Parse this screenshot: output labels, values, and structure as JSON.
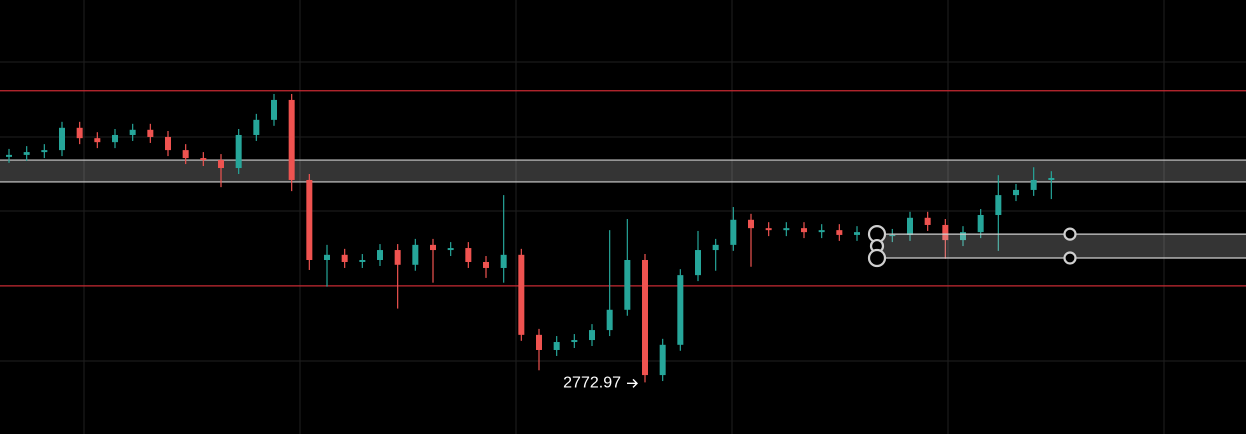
{
  "chart_data": {
    "type": "candlestick",
    "up_color": "#26a69a",
    "down_color": "#ef5350",
    "level_color": "#c62a32",
    "zone_color": "#cfcfcf",
    "ylim": [
      2760,
      2869
    ],
    "levels": [
      2846.2,
      2797.2
    ],
    "zone_full": [
      2823.3,
      2828.8
    ],
    "zone_right": [
      2804.2,
      2810.2
    ],
    "open": [
      2829.6,
      2830.1,
      2830.8,
      2831.3,
      2836.9,
      2834.3,
      2833.3,
      2835.1,
      2836.4,
      2834.6,
      2831.3,
      2829.3,
      2828.8,
      2826.8,
      2835.1,
      2838.9,
      2843.9,
      2823.8,
      2803.7,
      2805.0,
      2803.2,
      2803.7,
      2806.2,
      2802.5,
      2807.5,
      2806.2,
      2806.7,
      2803.2,
      2801.7,
      2805.0,
      2784.9,
      2781.1,
      2783.1,
      2783.6,
      2786.1,
      2791.2,
      2803.7,
      2774.8,
      2782.4,
      2799.9,
      2806.2,
      2807.5,
      2813.8,
      2811.7,
      2811.2,
      2811.7,
      2810.7,
      2811.2,
      2810.0,
      2810.7,
      2809.7,
      2810.0,
      2814.3,
      2812.5,
      2808.7,
      2810.7,
      2815.0,
      2820.0,
      2821.3,
      2823.8
    ],
    "high": [
      2831.6,
      2832.3,
      2832.8,
      2838.4,
      2838.4,
      2835.8,
      2836.6,
      2837.9,
      2837.9,
      2836.1,
      2832.8,
      2830.8,
      2830.3,
      2836.6,
      2840.4,
      2845.4,
      2845.4,
      2825.3,
      2807.5,
      2806.5,
      2805.2,
      2807.7,
      2807.7,
      2809.0,
      2809.0,
      2808.2,
      2808.2,
      2804.7,
      2820.0,
      2806.5,
      2786.4,
      2784.6,
      2785.1,
      2787.6,
      2811.2,
      2814.0,
      2805.2,
      2783.9,
      2801.4,
      2811.0,
      2809.0,
      2817.0,
      2815.3,
      2813.2,
      2813.2,
      2813.2,
      2812.7,
      2812.7,
      2812.2,
      2812.2,
      2811.5,
      2815.8,
      2815.8,
      2814.0,
      2812.2,
      2816.5,
      2825.0,
      2822.8,
      2827.0,
      2826.0
    ],
    "low": [
      2828.1,
      2828.6,
      2829.3,
      2829.8,
      2832.8,
      2831.8,
      2831.8,
      2833.6,
      2833.1,
      2829.8,
      2827.8,
      2827.3,
      2822.0,
      2825.3,
      2833.6,
      2837.4,
      2821.0,
      2801.2,
      2797.0,
      2801.7,
      2801.7,
      2802.2,
      2791.5,
      2801.0,
      2798.0,
      2804.7,
      2801.7,
      2799.2,
      2798.0,
      2783.4,
      2776.0,
      2779.6,
      2781.6,
      2782.1,
      2784.6,
      2789.7,
      2772.97,
      2773.3,
      2780.9,
      2798.4,
      2801.0,
      2806.0,
      2802.0,
      2809.7,
      2809.7,
      2809.2,
      2809.2,
      2808.5,
      2808.5,
      2808.2,
      2808.2,
      2808.5,
      2811.0,
      2804.0,
      2807.2,
      2809.2,
      2806.0,
      2818.5,
      2819.8,
      2819.0
    ],
    "close": [
      2830.1,
      2830.8,
      2831.3,
      2836.9,
      2834.3,
      2833.3,
      2835.1,
      2836.4,
      2834.6,
      2831.3,
      2829.3,
      2828.8,
      2826.8,
      2835.1,
      2838.9,
      2843.9,
      2823.8,
      2803.7,
      2805.0,
      2803.2,
      2803.7,
      2806.2,
      2802.5,
      2807.5,
      2806.2,
      2806.7,
      2803.2,
      2801.7,
      2805.0,
      2784.9,
      2781.1,
      2783.1,
      2783.6,
      2786.1,
      2791.2,
      2803.7,
      2774.8,
      2782.4,
      2799.9,
      2806.2,
      2807.5,
      2813.8,
      2811.7,
      2811.2,
      2811.7,
      2810.7,
      2811.2,
      2810.0,
      2810.7,
      2809.7,
      2810.0,
      2814.3,
      2812.5,
      2808.7,
      2810.7,
      2815.0,
      2820.0,
      2821.3,
      2823.8,
      2824.3
    ],
    "low_label_index": 36
  }
}
